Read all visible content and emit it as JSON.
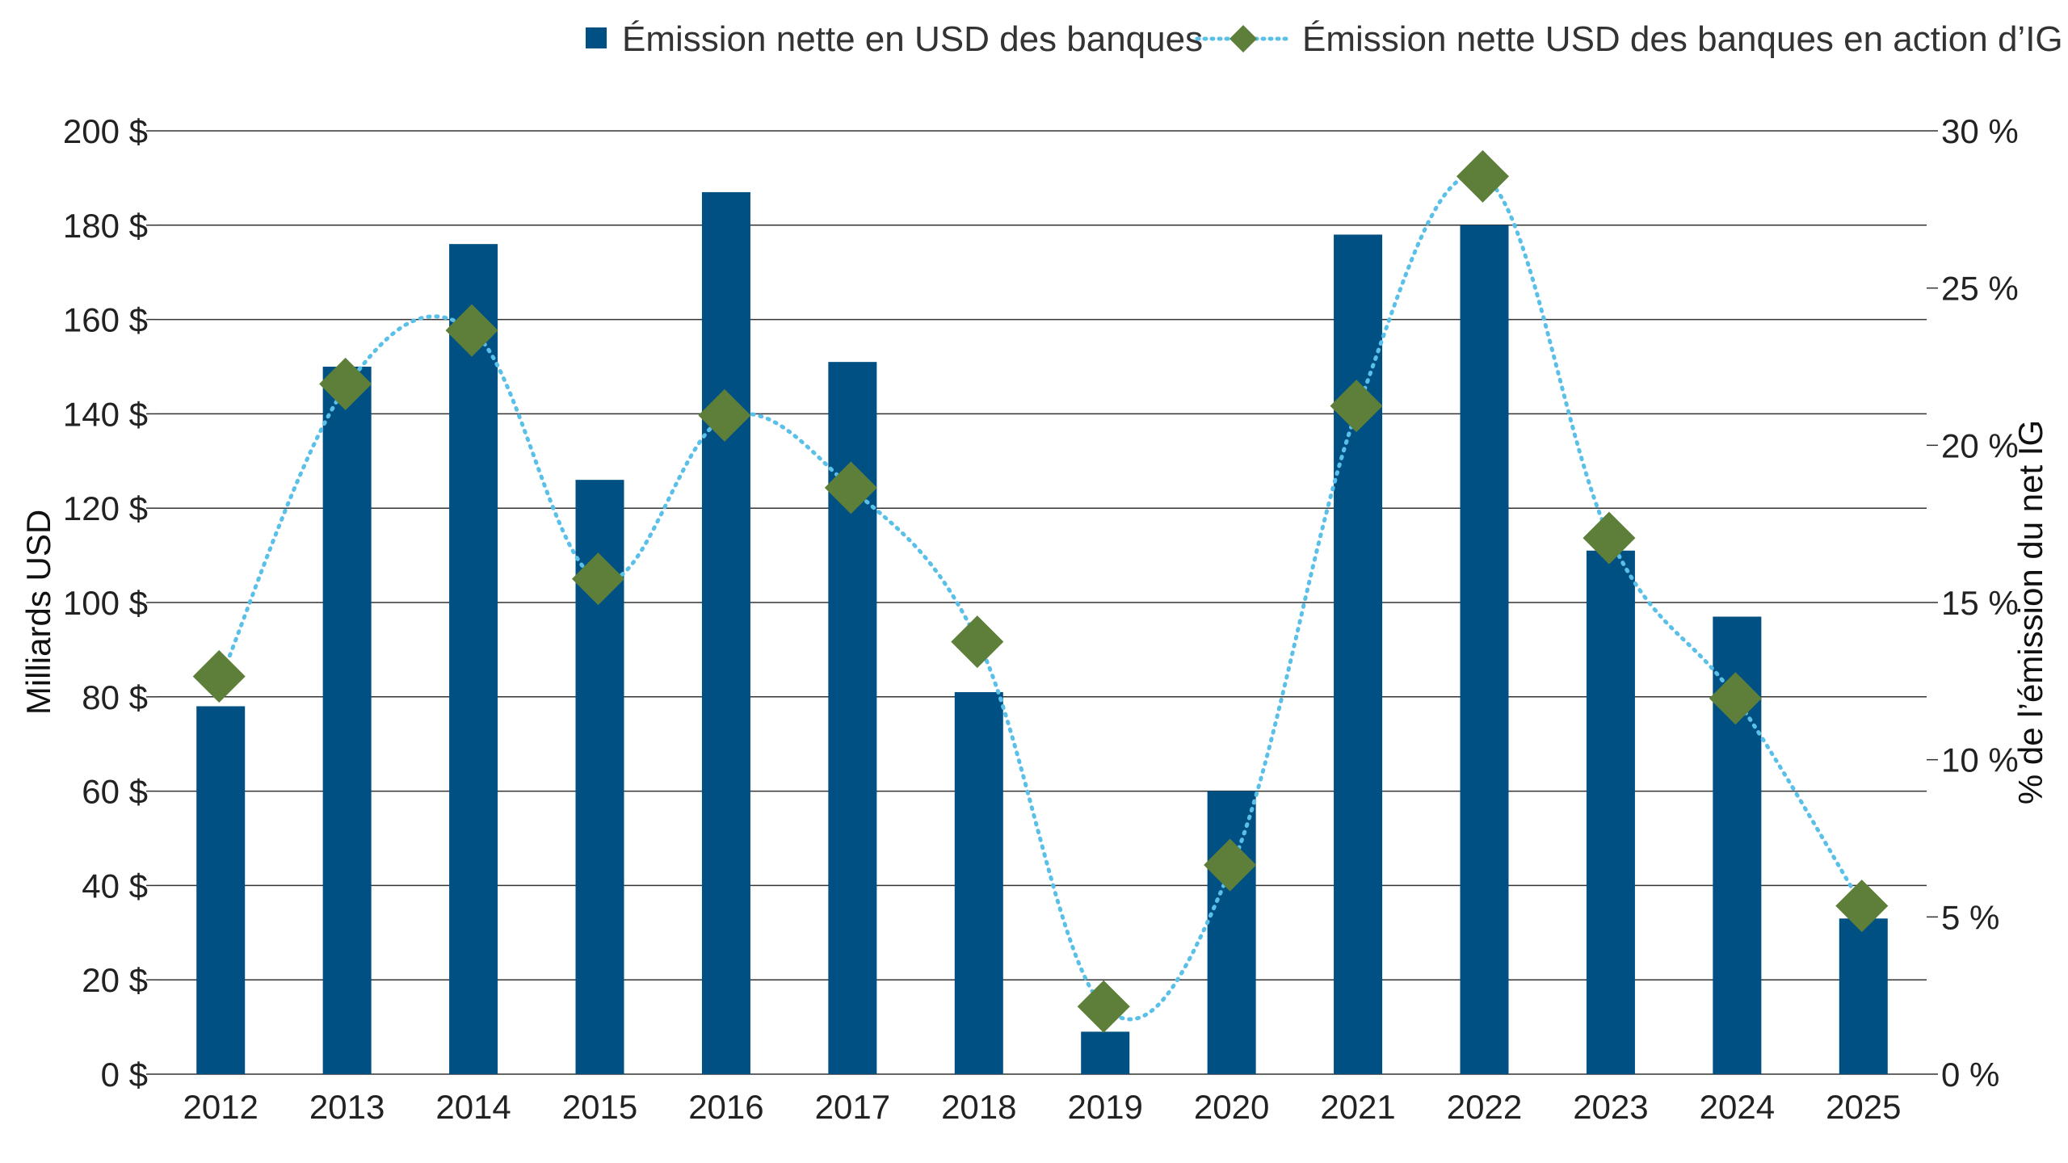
{
  "chart_data": {
    "type": "bar",
    "categories": [
      "2012",
      "2013",
      "2014",
      "2015",
      "2016",
      "2017",
      "2018",
      "2019",
      "2020",
      "2021",
      "2022",
      "2023",
      "2024",
      "2025"
    ],
    "series": [
      {
        "name": "Émission nette en USD des banques",
        "type": "bar",
        "axis": "left",
        "values": [
          78,
          150,
          176,
          126,
          187,
          151,
          81,
          9,
          60,
          178,
          180,
          111,
          97,
          33
        ]
      },
      {
        "name": "Émission nette USD des banques en action d’IG",
        "type": "line",
        "axis": "right",
        "values": [
          12.6,
          21.9,
          23.6,
          15.7,
          20.9,
          18.6,
          13.7,
          2.1,
          6.6,
          21.2,
          28.5,
          17.0,
          11.9,
          5.3
        ]
      }
    ],
    "ylabel": "Milliards USD",
    "y2label": "% de l’émission du net IG",
    "ylim": [
      0,
      200
    ],
    "y2lim": [
      0,
      30
    ],
    "yticks": [
      0,
      20,
      40,
      60,
      80,
      100,
      120,
      140,
      160,
      180,
      200
    ],
    "yticklabels": [
      "0 $",
      "20 $",
      "40 $",
      "60 $",
      "80 $",
      "100 $",
      "120 $",
      "140 $",
      "160 $",
      "180 $",
      "200 $"
    ],
    "y2ticks": [
      0,
      5,
      10,
      15,
      20,
      25,
      30
    ],
    "y2ticklabels": [
      "0 %",
      "5 %",
      "10 %",
      "15 %",
      "20 %",
      "25 %",
      "30 %"
    ],
    "grid": true,
    "legend_position": "top-right",
    "colors": {
      "bar": "#005084",
      "line": "#5BC0E8",
      "marker": "#5E7F3A",
      "grid": "#333333"
    }
  }
}
